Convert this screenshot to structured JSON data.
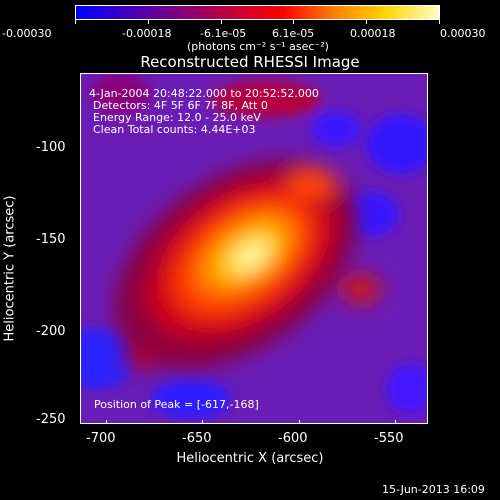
{
  "colorbar": {
    "ticks": [
      "-0.00030",
      "-0.00018",
      "-6.1e-05",
      "6.1e-05",
      "0.00018",
      "0.00030"
    ],
    "units": "(photons cm⁻² s⁻¹ asec⁻²)",
    "range": [
      -0.0003,
      0.0003
    ],
    "colormap": [
      "#0000ff",
      "#3f00bf",
      "#7f007f",
      "#bf003f",
      "#ff0000",
      "#ff7f00",
      "#ffd400",
      "#ffffbf"
    ]
  },
  "title": "Reconstructed RHESSI Image",
  "overlay": {
    "time_range": "4-Jan-2004 20:48:22.000 to 20:52:52.000",
    "detectors": "Detectors: 4F 5F 6F 7F 8F, Att 0",
    "energy": "Energy Range: 12.0 - 25.0 keV",
    "clean": "Clean    Total counts: 4.44E+03",
    "peak": "Position of Peak = [-617,-168]"
  },
  "axes": {
    "xlabel": "Heliocentric X (arcsec)",
    "ylabel": "Heliocentric Y (arcsec)",
    "xticks": [
      "-700",
      "-650",
      "-600",
      "-550"
    ],
    "yticks": [
      "-100",
      "-150",
      "-200",
      "-250"
    ]
  },
  "footer": {
    "timestamp": "15-Jun-2013 16:09"
  }
}
